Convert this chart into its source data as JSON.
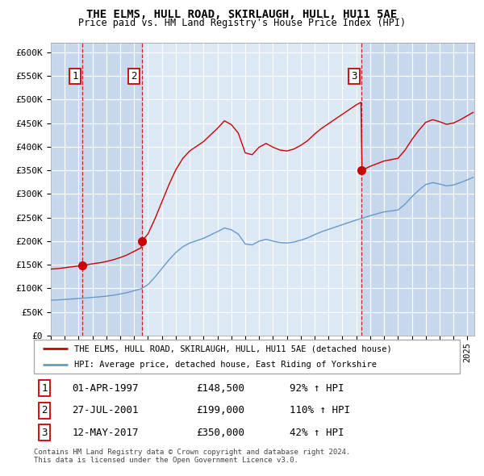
{
  "title": "THE ELMS, HULL ROAD, SKIRLAUGH, HULL, HU11 5AE",
  "subtitle": "Price paid vs. HM Land Registry's House Price Index (HPI)",
  "red_label": "THE ELMS, HULL ROAD, SKIRLAUGH, HULL, HU11 5AE (detached house)",
  "blue_label": "HPI: Average price, detached house, East Riding of Yorkshire",
  "footnote1": "Contains HM Land Registry data © Crown copyright and database right 2024.",
  "footnote2": "This data is licensed under the Open Government Licence v3.0.",
  "transactions": [
    {
      "num": 1,
      "date": "01-APR-1997",
      "price": 148500,
      "pct": "92%",
      "dir": "↑"
    },
    {
      "num": 2,
      "date": "27-JUL-2001",
      "price": 199000,
      "pct": "110%",
      "dir": "↑"
    },
    {
      "num": 3,
      "date": "12-MAY-2017",
      "price": 350000,
      "pct": "42%",
      "dir": "↑"
    }
  ],
  "t1": 1997.292,
  "t2": 2001.542,
  "t3": 2017.375,
  "p1": 148500,
  "p2": 199000,
  "p3": 350000,
  "xlim_start": 1995.0,
  "xlim_end": 2025.5,
  "ylim_min": 0,
  "ylim_max": 620000,
  "background_color": "#dce9f5",
  "red_color": "#cc0000",
  "blue_color": "#6699cc",
  "hpi_control_points": [
    [
      1995.0,
      75000
    ],
    [
      1995.5,
      75500
    ],
    [
      1996.0,
      76500
    ],
    [
      1996.5,
      77500
    ],
    [
      1997.0,
      78500
    ],
    [
      1997.5,
      79500
    ],
    [
      1998.0,
      81000
    ],
    [
      1998.5,
      82000
    ],
    [
      1999.0,
      83500
    ],
    [
      1999.5,
      85500
    ],
    [
      2000.0,
      88000
    ],
    [
      2000.5,
      91000
    ],
    [
      2001.0,
      95000
    ],
    [
      2001.5,
      99000
    ],
    [
      2002.0,
      108000
    ],
    [
      2002.5,
      124000
    ],
    [
      2003.0,
      142000
    ],
    [
      2003.5,
      160000
    ],
    [
      2004.0,
      176000
    ],
    [
      2004.5,
      188000
    ],
    [
      2005.0,
      196000
    ],
    [
      2005.5,
      201000
    ],
    [
      2006.0,
      206000
    ],
    [
      2006.5,
      213000
    ],
    [
      2007.0,
      220000
    ],
    [
      2007.5,
      228000
    ],
    [
      2008.0,
      224000
    ],
    [
      2008.5,
      215000
    ],
    [
      2009.0,
      194000
    ],
    [
      2009.5,
      192000
    ],
    [
      2010.0,
      200000
    ],
    [
      2010.5,
      204000
    ],
    [
      2011.0,
      200000
    ],
    [
      2011.5,
      197000
    ],
    [
      2012.0,
      196000
    ],
    [
      2012.5,
      198000
    ],
    [
      2013.0,
      202000
    ],
    [
      2013.5,
      207000
    ],
    [
      2014.0,
      214000
    ],
    [
      2014.5,
      220000
    ],
    [
      2015.0,
      225000
    ],
    [
      2015.5,
      230000
    ],
    [
      2016.0,
      235000
    ],
    [
      2016.5,
      240000
    ],
    [
      2017.0,
      245000
    ],
    [
      2017.5,
      249000
    ],
    [
      2018.0,
      254000
    ],
    [
      2018.5,
      258000
    ],
    [
      2019.0,
      262000
    ],
    [
      2019.5,
      264000
    ],
    [
      2020.0,
      266000
    ],
    [
      2020.5,
      278000
    ],
    [
      2021.0,
      294000
    ],
    [
      2021.5,
      308000
    ],
    [
      2022.0,
      320000
    ],
    [
      2022.5,
      324000
    ],
    [
      2023.0,
      321000
    ],
    [
      2023.5,
      317000
    ],
    [
      2024.0,
      319000
    ],
    [
      2024.5,
      324000
    ],
    [
      2025.0,
      330000
    ],
    [
      2025.5,
      336000
    ]
  ]
}
